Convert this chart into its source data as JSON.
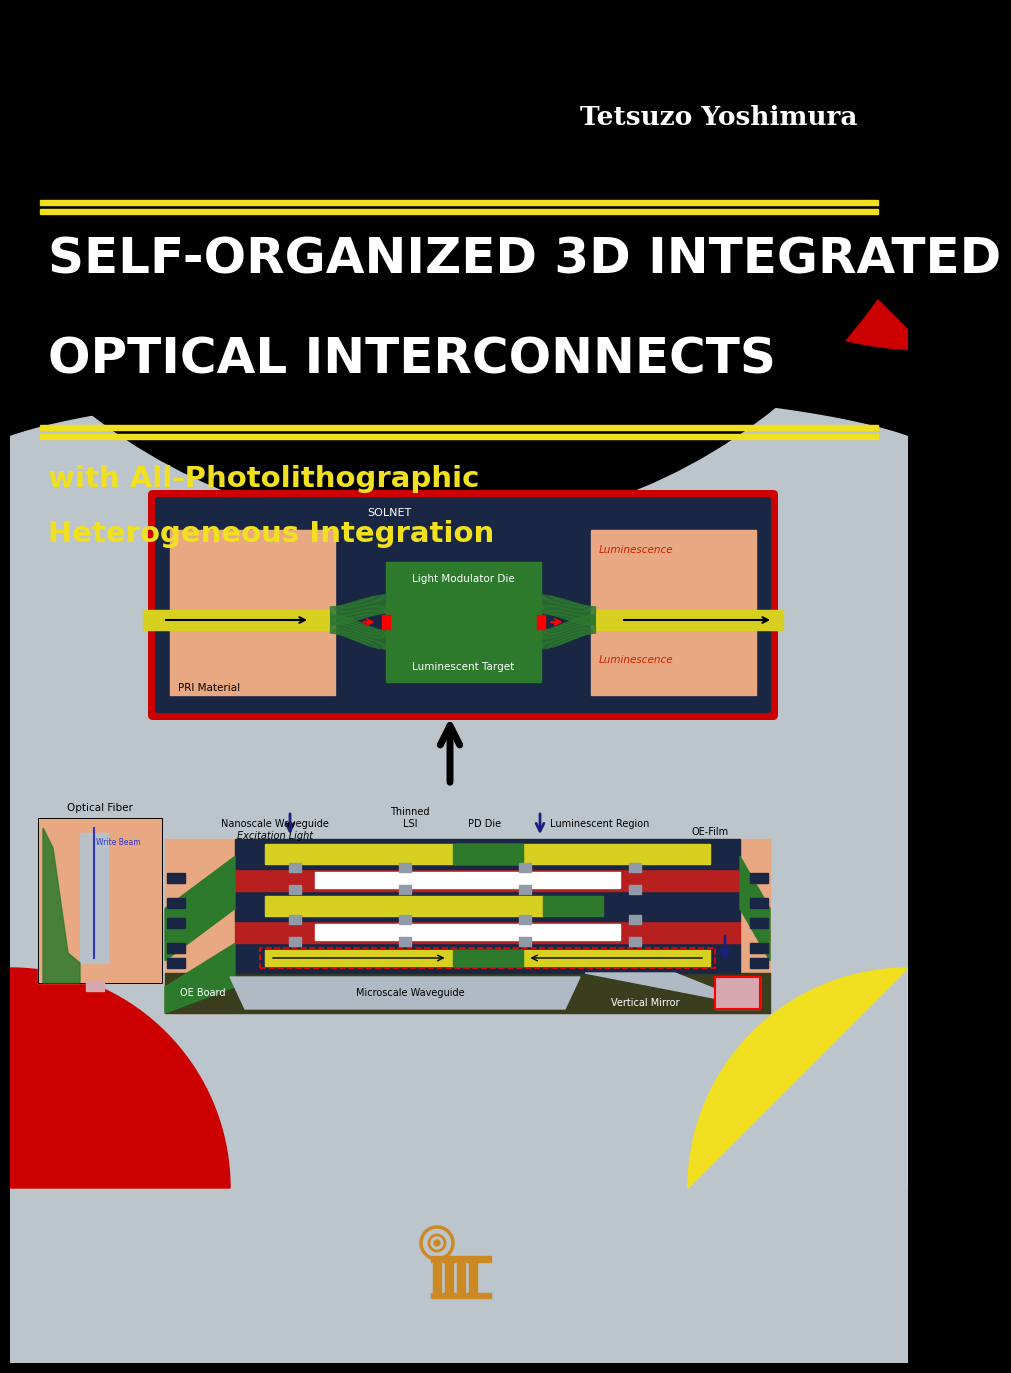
{
  "bg_black": "#000000",
  "bg_gray": "#bdc5cc",
  "yellow": "#f0e020",
  "red": "#cc0000",
  "author": "Tetsuzo Yoshimura",
  "title_line1": "SELF-ORGANIZED 3D INTEGRATED",
  "title_line2": "OPTICAL INTERCONNECTS",
  "subtitle_line1": "with All-Photolithographic",
  "subtitle_line2": "Heterogeneous Integration",
  "navy": "#1a2744",
  "salmon": "#e8a882",
  "green_dark": "#2d7a2d",
  "yellow_stripe": "#d8d020",
  "white": "#ffffff",
  "red_label": "#cc2200",
  "gray_board": "#3a3e1e",
  "gray_wg": "#b0bac4",
  "pink_small": "#d8a8b0",
  "publisher_color": "#cc8822",
  "blue_arrow": "#1a2080",
  "connector_gray": "#909aa8"
}
